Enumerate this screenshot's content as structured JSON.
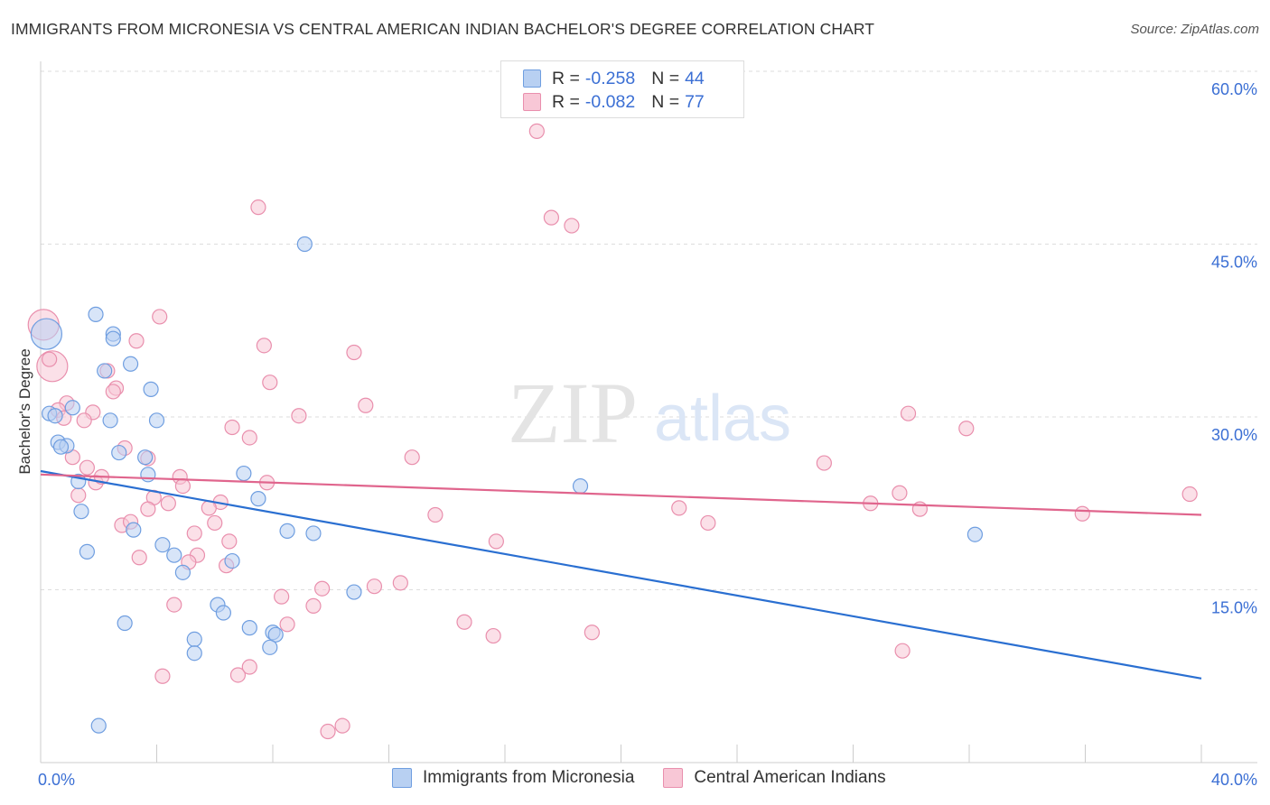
{
  "title": "IMMIGRANTS FROM MICRONESIA VS CENTRAL AMERICAN INDIAN BACHELOR'S DEGREE CORRELATION CHART",
  "source": "Source: ZipAtlas.com",
  "watermark": {
    "zip": "ZIP",
    "atlas": "atlas"
  },
  "legend": {
    "r_label": "R =",
    "n_label": "N =",
    "rows": [
      {
        "r": "-0.258",
        "n": "44"
      },
      {
        "r": "-0.082",
        "n": "77"
      }
    ]
  },
  "colors": {
    "blue_fill": "#b8d0f2",
    "blue_stroke": "#6f9ee0",
    "blue_line": "#2a6fd1",
    "pink_fill": "#f8c7d6",
    "pink_stroke": "#e98fad",
    "pink_line": "#e0658d",
    "tick_label": "#3b6fd4",
    "grid": "#dddddd"
  },
  "chart_data": {
    "type": "scatter",
    "title": "IMMIGRANTS FROM MICRONESIA VS CENTRAL AMERICAN INDIAN BACHELOR'S DEGREE CORRELATION CHART",
    "xlabel": "",
    "ylabel": "Bachelor's Degree",
    "xlim": [
      0,
      40
    ],
    "ylim": [
      0,
      60
    ],
    "x_tick_labels": [
      "0.0%",
      "40.0%"
    ],
    "y_ticks": [
      15,
      30,
      45,
      60
    ],
    "y_tick_labels": [
      "15.0%",
      "30.0%",
      "45.0%",
      "60.0%"
    ],
    "grid": "horizontal dashed",
    "series": [
      {
        "name": "Immigrants from Micronesia",
        "color": "blue",
        "trend": {
          "x": [
            0,
            40
          ],
          "y": [
            25.3,
            7.3
          ]
        },
        "points": [
          {
            "x": 0.2,
            "y": 37.2,
            "big": true
          },
          {
            "x": 1.9,
            "y": 38.9
          },
          {
            "x": 2.5,
            "y": 37.2
          },
          {
            "x": 2.5,
            "y": 36.8
          },
          {
            "x": 3.1,
            "y": 34.6
          },
          {
            "x": 2.2,
            "y": 34.0
          },
          {
            "x": 3.8,
            "y": 32.4
          },
          {
            "x": 1.1,
            "y": 30.8
          },
          {
            "x": 0.3,
            "y": 30.3
          },
          {
            "x": 0.5,
            "y": 30.1
          },
          {
            "x": 2.4,
            "y": 29.7
          },
          {
            "x": 4.0,
            "y": 29.7
          },
          {
            "x": 0.6,
            "y": 27.8
          },
          {
            "x": 0.9,
            "y": 27.5
          },
          {
            "x": 0.7,
            "y": 27.4
          },
          {
            "x": 2.7,
            "y": 26.9
          },
          {
            "x": 3.6,
            "y": 26.5
          },
          {
            "x": 3.7,
            "y": 25.0
          },
          {
            "x": 7.0,
            "y": 25.1
          },
          {
            "x": 1.3,
            "y": 24.4
          },
          {
            "x": 7.5,
            "y": 22.9
          },
          {
            "x": 1.4,
            "y": 21.8
          },
          {
            "x": 3.2,
            "y": 20.2
          },
          {
            "x": 8.5,
            "y": 20.1
          },
          {
            "x": 9.4,
            "y": 19.9
          },
          {
            "x": 4.2,
            "y": 18.9
          },
          {
            "x": 1.6,
            "y": 18.3
          },
          {
            "x": 4.6,
            "y": 18.0
          },
          {
            "x": 6.6,
            "y": 17.5
          },
          {
            "x": 4.9,
            "y": 16.5
          },
          {
            "x": 10.8,
            "y": 14.8
          },
          {
            "x": 6.1,
            "y": 13.7
          },
          {
            "x": 6.3,
            "y": 13.0
          },
          {
            "x": 2.9,
            "y": 12.1
          },
          {
            "x": 7.2,
            "y": 11.7
          },
          {
            "x": 8.0,
            "y": 11.3
          },
          {
            "x": 8.1,
            "y": 11.1
          },
          {
            "x": 5.3,
            "y": 10.7
          },
          {
            "x": 5.3,
            "y": 9.5
          },
          {
            "x": 7.9,
            "y": 10.0
          },
          {
            "x": 9.1,
            "y": 45.0
          },
          {
            "x": 18.6,
            "y": 24.0
          },
          {
            "x": 32.2,
            "y": 19.8
          },
          {
            "x": 2.0,
            "y": 3.2
          }
        ]
      },
      {
        "name": "Central American Indians",
        "color": "pink",
        "trend": {
          "x": [
            0,
            40
          ],
          "y": [
            25.0,
            21.5
          ]
        },
        "points": [
          {
            "x": 0.1,
            "y": 38.0,
            "big": true
          },
          {
            "x": 0.4,
            "y": 34.4,
            "big": true
          },
          {
            "x": 0.3,
            "y": 35.0
          },
          {
            "x": 17.1,
            "y": 54.8
          },
          {
            "x": 17.6,
            "y": 47.3
          },
          {
            "x": 18.3,
            "y": 46.6
          },
          {
            "x": 7.5,
            "y": 48.2
          },
          {
            "x": 4.1,
            "y": 38.7
          },
          {
            "x": 3.3,
            "y": 36.6
          },
          {
            "x": 7.7,
            "y": 36.2
          },
          {
            "x": 10.8,
            "y": 35.6
          },
          {
            "x": 2.3,
            "y": 34.0
          },
          {
            "x": 2.6,
            "y": 32.5
          },
          {
            "x": 2.5,
            "y": 32.2
          },
          {
            "x": 7.9,
            "y": 33.0
          },
          {
            "x": 11.2,
            "y": 31.0
          },
          {
            "x": 0.9,
            "y": 31.2
          },
          {
            "x": 0.6,
            "y": 30.6
          },
          {
            "x": 1.8,
            "y": 30.4
          },
          {
            "x": 0.8,
            "y": 29.9
          },
          {
            "x": 1.5,
            "y": 29.7
          },
          {
            "x": 8.9,
            "y": 30.1
          },
          {
            "x": 6.6,
            "y": 29.1
          },
          {
            "x": 7.2,
            "y": 28.2
          },
          {
            "x": 29.9,
            "y": 30.3
          },
          {
            "x": 31.9,
            "y": 29.0
          },
          {
            "x": 2.9,
            "y": 27.3
          },
          {
            "x": 3.7,
            "y": 26.4
          },
          {
            "x": 1.1,
            "y": 26.5
          },
          {
            "x": 12.8,
            "y": 26.5
          },
          {
            "x": 27.0,
            "y": 26.0
          },
          {
            "x": 1.6,
            "y": 25.6
          },
          {
            "x": 1.9,
            "y": 24.3
          },
          {
            "x": 2.1,
            "y": 24.8
          },
          {
            "x": 4.8,
            "y": 24.8
          },
          {
            "x": 4.9,
            "y": 24.0
          },
          {
            "x": 7.8,
            "y": 24.3
          },
          {
            "x": 1.3,
            "y": 23.2
          },
          {
            "x": 3.9,
            "y": 23.0
          },
          {
            "x": 4.4,
            "y": 22.5
          },
          {
            "x": 6.2,
            "y": 22.6
          },
          {
            "x": 5.8,
            "y": 22.1
          },
          {
            "x": 3.7,
            "y": 22.0
          },
          {
            "x": 13.6,
            "y": 21.5
          },
          {
            "x": 22.0,
            "y": 22.1
          },
          {
            "x": 23.0,
            "y": 20.8
          },
          {
            "x": 28.6,
            "y": 22.5
          },
          {
            "x": 29.6,
            "y": 23.4
          },
          {
            "x": 30.3,
            "y": 22.0
          },
          {
            "x": 35.9,
            "y": 21.6
          },
          {
            "x": 39.6,
            "y": 23.3
          },
          {
            "x": 2.8,
            "y": 20.6
          },
          {
            "x": 3.1,
            "y": 20.9
          },
          {
            "x": 6.0,
            "y": 20.8
          },
          {
            "x": 5.3,
            "y": 19.9
          },
          {
            "x": 6.5,
            "y": 19.2
          },
          {
            "x": 15.7,
            "y": 19.2
          },
          {
            "x": 3.4,
            "y": 17.8
          },
          {
            "x": 5.4,
            "y": 18.0
          },
          {
            "x": 5.1,
            "y": 17.4
          },
          {
            "x": 6.4,
            "y": 17.1
          },
          {
            "x": 9.7,
            "y": 15.1
          },
          {
            "x": 11.5,
            "y": 15.3
          },
          {
            "x": 12.4,
            "y": 15.6
          },
          {
            "x": 8.3,
            "y": 14.4
          },
          {
            "x": 9.4,
            "y": 13.6
          },
          {
            "x": 4.6,
            "y": 13.7
          },
          {
            "x": 8.5,
            "y": 12.0
          },
          {
            "x": 14.6,
            "y": 12.2
          },
          {
            "x": 15.6,
            "y": 11.0
          },
          {
            "x": 19.0,
            "y": 11.3
          },
          {
            "x": 29.7,
            "y": 9.7
          },
          {
            "x": 4.2,
            "y": 7.5
          },
          {
            "x": 6.8,
            "y": 7.6
          },
          {
            "x": 7.2,
            "y": 8.3
          },
          {
            "x": 10.4,
            "y": 3.2
          },
          {
            "x": 9.9,
            "y": 2.7
          }
        ]
      }
    ]
  },
  "bottom_legend": [
    "Immigrants from Micronesia",
    "Central American Indians"
  ]
}
